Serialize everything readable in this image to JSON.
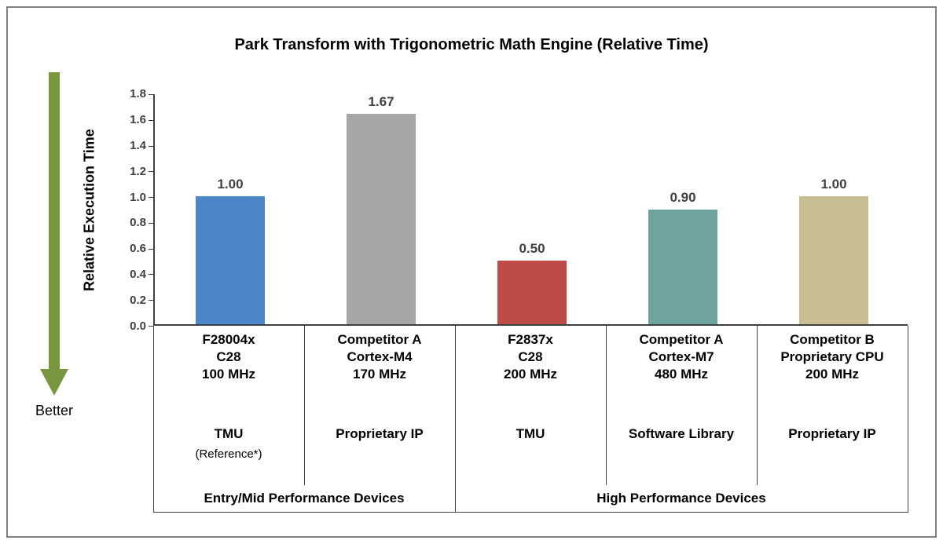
{
  "chart_data": {
    "type": "bar",
    "title": "Park Transform with Trigonometric Math Engine (Relative Time)",
    "ylabel": "Relative Execution Time",
    "ylim": [
      0,
      1.8
    ],
    "ytick_step": 0.2,
    "grid": false,
    "legend": "none",
    "yticks": [
      "1.8",
      "1.6",
      "1.4",
      "1.2",
      "1.0",
      "0.8",
      "0.6",
      "0.4",
      "0.2",
      "0.0"
    ],
    "arrow": {
      "label": "Better",
      "color": "#78963e",
      "direction": "down"
    },
    "bars": [
      {
        "device": "F28004x",
        "core": "C28",
        "freq": "100 MHz",
        "engine": "TMU",
        "note": "(Reference*)",
        "value": 1.0,
        "label": "1.00",
        "color": "#4a86c8"
      },
      {
        "device": "Competitor A",
        "core": "Cortex-M4",
        "freq": "170 MHz",
        "engine": "Proprietary IP",
        "note": "",
        "value": 1.67,
        "label": "1.67",
        "color": "#a6a6a6"
      },
      {
        "device": "F2837x",
        "core": "C28",
        "freq": "200 MHz",
        "engine": "TMU",
        "note": "",
        "value": 0.5,
        "label": "0.50",
        "color": "#bf4b47"
      },
      {
        "device": "Competitor A",
        "core": "Cortex-M7",
        "freq": "480 MHz",
        "engine": "Software Library",
        "note": "",
        "value": 0.9,
        "label": "0.90",
        "color": "#6fa49e"
      },
      {
        "device": "Competitor B",
        "core": "Proprietary CPU",
        "freq": "200 MHz",
        "engine": "Proprietary IP",
        "note": "",
        "value": 1.0,
        "label": "1.00",
        "color": "#c9bd92"
      }
    ],
    "groups": [
      {
        "label": "Entry/Mid Performance Devices",
        "span": 2
      },
      {
        "label": "High Performance Devices",
        "span": 3
      }
    ],
    "line_color": "#404040"
  }
}
